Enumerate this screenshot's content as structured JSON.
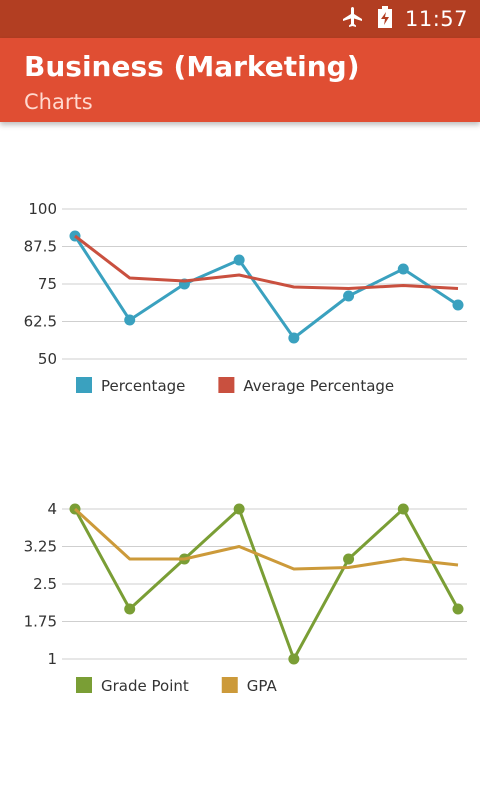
{
  "status_bar": {
    "time": "11:57",
    "icons": [
      "airplane-mode-icon",
      "battery-charging-icon"
    ],
    "color": "#b23e22"
  },
  "app_bar": {
    "title": "Business (Marketing)",
    "subtitle": "Charts",
    "color": "#e04e33"
  },
  "chart_data": [
    {
      "type": "line",
      "ylim": [
        50,
        100
      ],
      "yticks": [
        "100",
        "87.5",
        "75",
        "62.5",
        "50"
      ],
      "ytick_values": [
        100,
        87.5,
        75,
        62.5,
        50
      ],
      "grid": true,
      "legend": "bottom-left",
      "series": [
        {
          "name": "Percentage",
          "color": "#3aa1bf",
          "markers": true,
          "values": [
            91,
            63,
            75,
            83,
            57,
            71,
            80,
            68
          ]
        },
        {
          "name": "Average Percentage",
          "color": "#c9503f",
          "markers": false,
          "values": [
            91,
            77,
            76,
            78,
            74,
            73.5,
            74.5,
            73.5
          ]
        }
      ]
    },
    {
      "type": "line",
      "ylim": [
        1,
        4
      ],
      "yticks": [
        "4",
        "3.25",
        "2.5",
        "1.75",
        "1"
      ],
      "ytick_values": [
        4,
        3.25,
        2.5,
        1.75,
        1
      ],
      "grid": true,
      "legend": "bottom-left",
      "series": [
        {
          "name": "Grade Point",
          "color": "#7a9e35",
          "markers": true,
          "values": [
            4,
            2,
            3,
            4,
            1,
            3,
            4,
            2
          ]
        },
        {
          "name": "GPA",
          "color": "#cc9a3a",
          "markers": false,
          "values": [
            4,
            3,
            3,
            3.25,
            2.8,
            2.83,
            3,
            2.88
          ]
        }
      ]
    }
  ]
}
